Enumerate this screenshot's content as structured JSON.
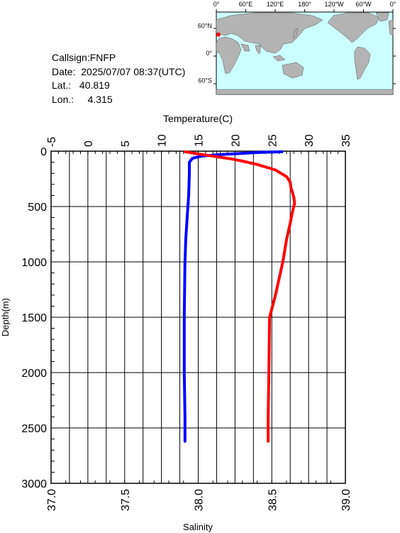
{
  "station": {
    "callsign": "Callsign:FNFP",
    "date": "Date:  2025/07/07 08:37(UTC)",
    "lat": "Lat.:   40.819",
    "lon": "Lon.:     4.315"
  },
  "map": {
    "top_lon_labels": [
      "0°",
      "60°E",
      "120°E",
      "180°",
      "120°W",
      "60°W",
      "0°"
    ],
    "lat_labels": [
      "60°N",
      "0°",
      "60°S"
    ],
    "ocean_color": "#ccffff",
    "land_color": "#b3b3b3",
    "marker_color": "#ff0000",
    "marker_lat": 40.819,
    "marker_lon": 4.315
  },
  "chart_data": {
    "type": "line",
    "ylabel": "Depth(m)",
    "ylim": [
      3000,
      0
    ],
    "yticks": [
      "0",
      "500",
      "1000",
      "1500",
      "2000",
      "2500",
      "3000"
    ],
    "ytick_values": [
      0,
      500,
      1000,
      1500,
      2000,
      2500,
      3000
    ],
    "top_axis": {
      "label": "Temperature(C)",
      "lim": [
        -5,
        35
      ],
      "ticks": [
        "-5",
        "0",
        "5",
        "10",
        "15",
        "20",
        "25",
        "30",
        "35"
      ],
      "tick_values": [
        -5,
        0,
        5,
        10,
        15,
        20,
        25,
        30,
        35
      ]
    },
    "bottom_axis": {
      "label": "Salinity",
      "lim": [
        37.0,
        39.0
      ],
      "ticks": [
        "37.0",
        "37.5",
        "38.0",
        "38.5",
        "39.0"
      ],
      "tick_values": [
        37.0,
        37.5,
        38.0,
        38.5,
        39.0
      ]
    },
    "grid": true,
    "series": [
      {
        "axis": "bottom",
        "color": "#0000ff",
        "points": [
          [
            38.57,
            5
          ],
          [
            38.4,
            12
          ],
          [
            38.3,
            20
          ],
          [
            38.15,
            30
          ],
          [
            38.02,
            45
          ],
          [
            37.96,
            65
          ],
          [
            37.94,
            100
          ],
          [
            37.94,
            200
          ],
          [
            37.935,
            400
          ],
          [
            37.925,
            600
          ],
          [
            37.915,
            800
          ],
          [
            37.91,
            1000
          ],
          [
            37.905,
            1500
          ],
          [
            37.905,
            2000
          ],
          [
            37.91,
            2400
          ],
          [
            37.91,
            2620
          ]
        ]
      },
      {
        "axis": "top",
        "color": "#ff0000",
        "points": [
          [
            13.2,
            5
          ],
          [
            15.0,
            25
          ],
          [
            16.5,
            40
          ],
          [
            18.0,
            55
          ],
          [
            19.5,
            70
          ],
          [
            21.0,
            90
          ],
          [
            23.0,
            120
          ],
          [
            25.5,
            170
          ],
          [
            27.0,
            230
          ],
          [
            27.5,
            280
          ],
          [
            27.6,
            330
          ],
          [
            27.8,
            370
          ],
          [
            28.0,
            420
          ],
          [
            28.1,
            470
          ],
          [
            27.8,
            550
          ],
          [
            27.5,
            650
          ],
          [
            27.0,
            800
          ],
          [
            26.5,
            1000
          ],
          [
            25.5,
            1300
          ],
          [
            24.7,
            1500
          ],
          [
            24.6,
            2000
          ],
          [
            24.5,
            2400
          ],
          [
            24.5,
            2620
          ]
        ]
      }
    ]
  }
}
